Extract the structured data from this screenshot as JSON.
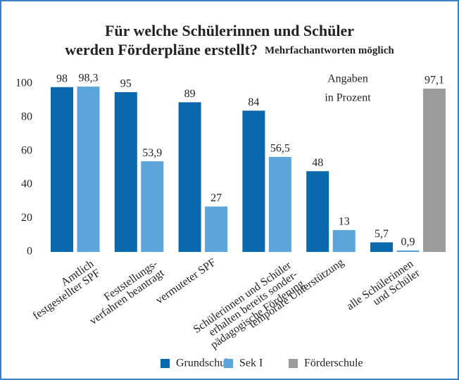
{
  "chart_data": {
    "type": "bar",
    "title_lines": [
      "Für welche Schülerinnen und Schüler",
      "werden Förderpläne erstellt?"
    ],
    "subtitle": "Mehrfachantworten möglich",
    "annotation_lines": [
      "Angaben",
      "in Prozent"
    ],
    "categories": [
      [
        "Amtlich",
        "festgestellter SPF"
      ],
      [
        "Feststellungs-",
        "verfahren beantragt"
      ],
      [
        "vermuteter SPF"
      ],
      [
        "Schülerinnen und Schüler",
        "erhalten bereits sonder-",
        "pädagogische Förderung"
      ],
      [
        "temporäre Unterstützung"
      ],
      [
        "alle Schülerinnen",
        "und Schüler"
      ]
    ],
    "series": [
      {
        "name": "Grundschule",
        "color": "#0b68ad",
        "values": [
          98,
          95,
          89,
          84,
          48,
          5.7
        ],
        "value_labels": [
          "98",
          "95",
          "89",
          "84",
          "48",
          "5,7"
        ]
      },
      {
        "name": "Sek I",
        "color": "#5ba5da",
        "values": [
          98.3,
          53.9,
          27,
          56.5,
          13,
          0.9
        ],
        "value_labels": [
          "98,3",
          "53,9",
          "27",
          "56,5",
          "13",
          "0,9"
        ]
      },
      {
        "name": "Förderschule",
        "color": "#9b9b9b",
        "values": [
          null,
          null,
          null,
          null,
          null,
          97.1
        ],
        "value_labels": [
          null,
          null,
          null,
          null,
          null,
          "97,1"
        ]
      }
    ],
    "ylim": [
      0,
      100
    ],
    "yticks": [
      0,
      20,
      40,
      60,
      80,
      100
    ],
    "legend": "bottom"
  }
}
